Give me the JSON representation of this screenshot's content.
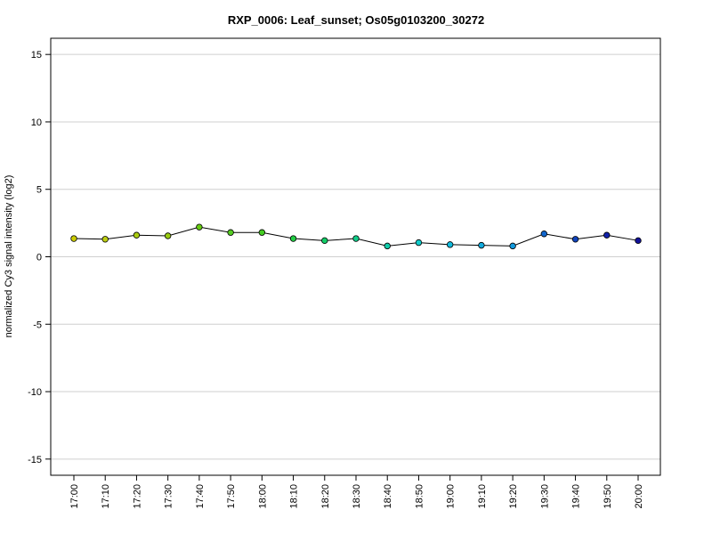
{
  "chart_data": {
    "type": "line",
    "title": "RXP_0006: Leaf_sunset; Os05g0103200_30272",
    "xlabel": "",
    "ylabel": "normalized Cy3 signal intensity (log2)",
    "ylim": [
      -16.2,
      16.2
    ],
    "yticks": [
      -15,
      -10,
      -5,
      0,
      5,
      10,
      15
    ],
    "ytick_labels": [
      "-15",
      "-10",
      "-5",
      "0",
      "5",
      "10",
      "15"
    ],
    "grid": true,
    "categories": [
      "17:00",
      "17:10",
      "17:20",
      "17:30",
      "17:40",
      "17:50",
      "18:00",
      "18:10",
      "18:20",
      "18:30",
      "18:40",
      "18:50",
      "19:00",
      "19:10",
      "19:20",
      "19:30",
      "19:40",
      "19:50",
      "20:00"
    ],
    "series": [
      {
        "values": [
          1.35,
          1.3,
          1.6,
          1.55,
          2.2,
          1.8,
          1.8,
          1.35,
          1.2,
          1.35,
          0.8,
          1.05,
          0.9,
          0.85,
          0.8,
          1.7,
          1.3,
          1.6,
          1.2
        ],
        "line_color": "#000000",
        "point_colors": [
          "#cccc00",
          "#bbcc11",
          "#aacc11",
          "#99cc11",
          "#66cc11",
          "#55cc22",
          "#44cc22",
          "#22cc44",
          "#11cc66",
          "#11cc88",
          "#11ccaa",
          "#11cccc",
          "#11bbdd",
          "#11aadd",
          "#1199dd",
          "#1166cc",
          "#1144bb",
          "#1122aa",
          "#111199"
        ]
      }
    ]
  }
}
